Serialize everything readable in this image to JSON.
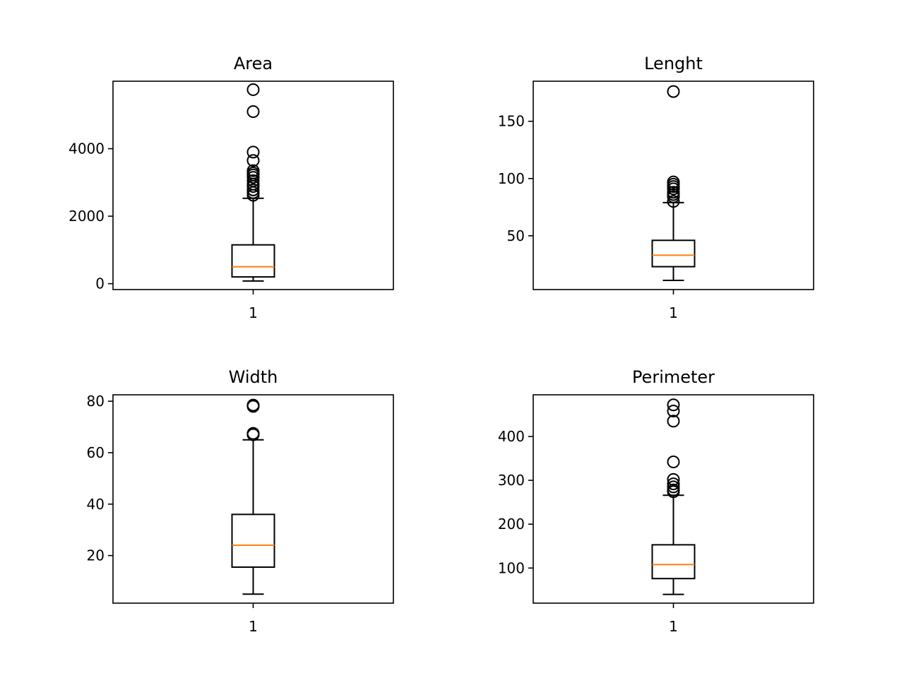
{
  "chart_data": [
    {
      "type": "box",
      "title": "Area",
      "categories": [
        "1"
      ],
      "yticks": [
        0,
        2000,
        4000
      ],
      "ylim": [
        -175,
        6000
      ],
      "box": {
        "whisker_low": 80,
        "q1": 200,
        "median": 500,
        "q3": 1150,
        "whisker_high": 2530
      },
      "outliers": [
        5750,
        5100,
        3900,
        3650,
        3350,
        3280,
        3220,
        3150,
        3050,
        2950,
        2880,
        2780,
        2700,
        2620
      ]
    },
    {
      "type": "box",
      "title": "Lenght",
      "categories": [
        "1"
      ],
      "yticks": [
        50,
        100,
        150
      ],
      "ylim": [
        3,
        185
      ],
      "box": {
        "whisker_low": 11,
        "q1": 23,
        "median": 33,
        "q3": 46,
        "whisker_high": 79
      },
      "outliers": [
        176,
        97,
        95,
        93,
        91,
        88,
        86,
        84,
        80
      ]
    },
    {
      "type": "box",
      "title": "Width",
      "categories": [
        "1"
      ],
      "yticks": [
        20,
        40,
        60,
        80
      ],
      "ylim": [
        1.5,
        82.5
      ],
      "box": {
        "whisker_low": 5,
        "q1": 15.5,
        "median": 24,
        "q3": 36,
        "whisker_high": 65
      },
      "outliers": [
        78.5,
        78,
        67.5,
        67
      ]
    },
    {
      "type": "box",
      "title": "Perimeter",
      "categories": [
        "1"
      ],
      "yticks": [
        100,
        200,
        300,
        400
      ],
      "ylim": [
        20,
        495
      ],
      "box": {
        "whisker_low": 40,
        "q1": 76,
        "median": 108,
        "q3": 153,
        "whisker_high": 266
      },
      "outliers": [
        472,
        458,
        435,
        342,
        302,
        292,
        285,
        278,
        274
      ]
    }
  ]
}
